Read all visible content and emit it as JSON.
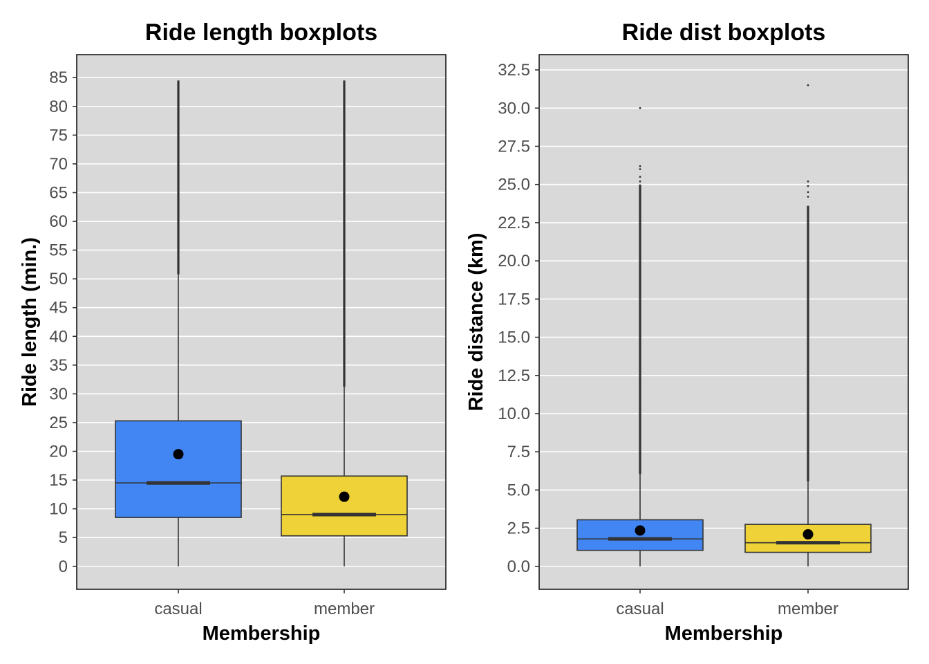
{
  "chart_data": [
    {
      "type": "boxplot",
      "title": "Ride length boxplots",
      "xlabel": "Membership",
      "ylabel": "Ride length (min.)",
      "categories": [
        "casual",
        "member"
      ],
      "y_ticks": [
        "0",
        "5",
        "10",
        "15",
        "20",
        "25",
        "30",
        "35",
        "40",
        "45",
        "50",
        "55",
        "60",
        "65",
        "70",
        "75",
        "80",
        "85"
      ],
      "ylim": [
        -4,
        89
      ],
      "grid": true,
      "boxes": [
        {
          "category": "casual",
          "min": 0,
          "q1": 8.5,
          "median": 14.5,
          "q3": 25.3,
          "whisker_high": 50.8,
          "outlier_max": 84.5,
          "mean": 19.5,
          "color": "#4286f4"
        },
        {
          "category": "member",
          "min": 0,
          "q1": 5.3,
          "median": 9.0,
          "q3": 15.7,
          "whisker_high": 31.2,
          "outlier_max": 84.5,
          "mean": 12.1,
          "color": "#eed238"
        }
      ]
    },
    {
      "type": "boxplot",
      "title": "Ride dist boxplots",
      "xlabel": "Membership",
      "ylabel": "Ride distance (km)",
      "categories": [
        "casual",
        "member"
      ],
      "y_ticks": [
        "0.0",
        "2.5",
        "5.0",
        "7.5",
        "10.0",
        "12.5",
        "15.0",
        "17.5",
        "20.0",
        "22.5",
        "25.0",
        "27.5",
        "30.0",
        "32.5"
      ],
      "ylim": [
        -1.5,
        33.5
      ],
      "grid": true,
      "boxes": [
        {
          "category": "casual",
          "min": 0,
          "q1": 1.05,
          "median": 1.8,
          "q3": 3.05,
          "whisker_high": 6.05,
          "dense_outliers_to": 25.0,
          "outliers": [
            25.2,
            25.5,
            26.0,
            26.2,
            30.0
          ],
          "mean": 2.35,
          "color": "#4286f4"
        },
        {
          "category": "member",
          "min": 0,
          "q1": 0.92,
          "median": 1.55,
          "q3": 2.75,
          "whisker_high": 5.55,
          "dense_outliers_to": 23.6,
          "outliers": [
            24.2,
            24.5,
            24.9,
            25.2,
            31.5
          ],
          "mean": 2.1,
          "color": "#eed238"
        }
      ]
    }
  ]
}
